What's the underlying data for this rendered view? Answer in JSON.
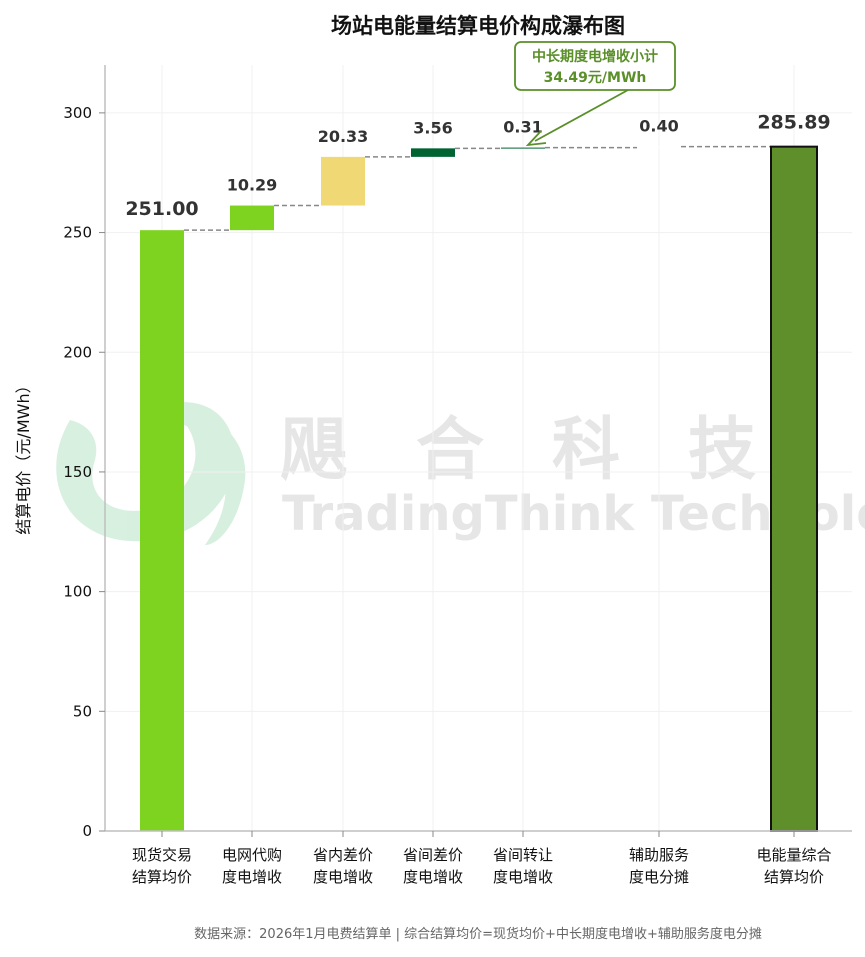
{
  "chart_data": {
    "type": "waterfall",
    "title": "场站电能量结算电价构成瀑布图",
    "ylabel": "结算电价（元/MWh）",
    "xlabel": "",
    "ylim": [
      0,
      320
    ],
    "yticks": [
      0,
      50,
      100,
      150,
      200,
      250,
      300
    ],
    "grid": true,
    "categories": [
      [
        "现货交易",
        "结算均价"
      ],
      [
        "电网代购",
        "度电增收"
      ],
      [
        "省内差价",
        "度电增收"
      ],
      [
        "省间差价",
        "度电增收"
      ],
      [
        "省间转让",
        "度电增收"
      ],
      [
        "辅助服务",
        "度电分摊"
      ],
      [
        "电能量综合",
        "结算均价"
      ]
    ],
    "values": [
      251.0,
      10.29,
      20.33,
      3.56,
      0.31,
      0.4,
      285.89
    ],
    "value_labels": [
      "251.00",
      "10.29",
      "20.33",
      "3.56",
      "0.31",
      "0.40",
      "285.89"
    ],
    "bar_types": [
      "base",
      "delta",
      "delta",
      "delta",
      "delta",
      "delta",
      "total"
    ],
    "colors": [
      "#7ed321",
      "#7ed321",
      "#f0d875",
      "#006432",
      "#006432",
      "#ffffff",
      "#5f8f2a"
    ],
    "annotation": {
      "line1": "中长期度电增收小计",
      "line2": "34.49元/MWh",
      "color": "#5a8f29"
    },
    "source_note": "数据来源：2026年1月电费结算单 | 综合结算均价=现货均价+中长期度电增收+辅助服务度电分摊"
  },
  "watermark": {
    "cn": "飓　合　科　技",
    "en": "TradingThink Technology"
  }
}
